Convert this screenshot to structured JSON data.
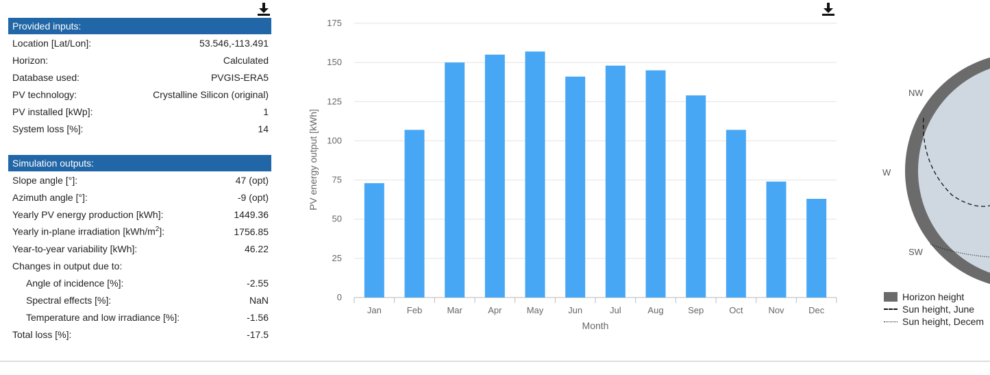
{
  "inputs": {
    "header": "Provided inputs:",
    "rows": [
      {
        "label": "Location [Lat/Lon]:",
        "value": "53.546,-113.491"
      },
      {
        "label": "Horizon:",
        "value": "Calculated"
      },
      {
        "label": "Database used:",
        "value": "PVGIS-ERA5"
      },
      {
        "label": "PV technology:",
        "value": "Crystalline Silicon (original)"
      },
      {
        "label": "PV installed [kWp]:",
        "value": "1"
      },
      {
        "label": "System loss [%]:",
        "value": "14"
      }
    ]
  },
  "outputs": {
    "header": "Simulation outputs:",
    "slope": {
      "label": "Slope angle [°]:",
      "value": "47 (opt)"
    },
    "azimuth": {
      "label": "Azimuth angle [°]:",
      "value": "-9 (opt)"
    },
    "yearly_pv": {
      "label": "Yearly PV energy production [kWh]:",
      "value": "1449.36"
    },
    "irradiation": {
      "label_pre": "Yearly in-plane irradiation [kWh/m",
      "label_sup": "2",
      "label_post": "]:",
      "value": "1756.85"
    },
    "variability": {
      "label": "Year-to-year variability [kWh]:",
      "value": "46.22"
    },
    "changes": {
      "label": "Changes in output due to:"
    },
    "aoi": {
      "label": "Angle of incidence [%]:",
      "value": "-2.55"
    },
    "spectral": {
      "label": "Spectral effects [%]:",
      "value": "NaN"
    },
    "temp": {
      "label": "Temperature and low irradiance [%]:",
      "value": "-1.56"
    },
    "total": {
      "label": "Total loss [%]:",
      "value": "-17.5"
    }
  },
  "icons": {
    "download": "download-icon"
  },
  "colors": {
    "header_bg": "#2166a6",
    "bar": "#47a7f5",
    "horizon": "#6b6b6b",
    "sky": "#cfd8e1"
  },
  "chart_data": {
    "type": "bar",
    "categories": [
      "Jan",
      "Feb",
      "Mar",
      "Apr",
      "May",
      "Jun",
      "Jul",
      "Aug",
      "Sep",
      "Oct",
      "Nov",
      "Dec"
    ],
    "values": [
      73,
      107,
      150,
      155,
      157,
      141,
      148,
      145,
      129,
      107,
      74,
      63
    ],
    "ticks": [
      0,
      25,
      50,
      75,
      100,
      125,
      150,
      175
    ],
    "xlabel": "Month",
    "ylabel": "PV energy output [kWh]",
    "ylim": [
      0,
      175
    ],
    "grid": true
  },
  "horizon_chart": {
    "compass": [
      "NW",
      "W",
      "SW"
    ],
    "legend": [
      {
        "label": "Horizon height",
        "style": "fill"
      },
      {
        "label": "Sun height, June",
        "style": "dashed"
      },
      {
        "label": "Sun height, Decem",
        "style": "dotted"
      }
    ]
  }
}
